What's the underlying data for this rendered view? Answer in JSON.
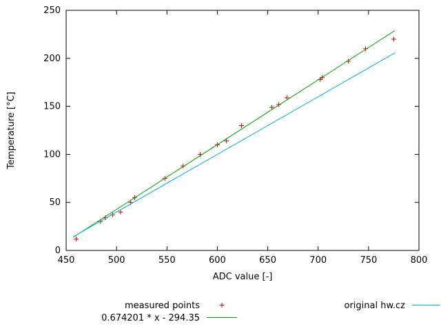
{
  "chart_data": {
    "type": "scatter",
    "title": "",
    "xlabel": "ADC value [-]",
    "ylabel": "Temperature [°C]",
    "xlim": [
      450,
      800
    ],
    "ylim": [
      0,
      250
    ],
    "xticks": [
      450,
      500,
      550,
      600,
      650,
      700,
      750,
      800
    ],
    "yticks": [
      0,
      50,
      100,
      150,
      200,
      250
    ],
    "grid": false,
    "legend_position": "below",
    "background": "#ffffff",
    "axis_color": "#000000",
    "series": [
      {
        "name": "measured points",
        "kind": "points",
        "marker": "plus",
        "color": "#cc0000",
        "points": [
          [
            460,
            12
          ],
          [
            484,
            30
          ],
          [
            489,
            34
          ],
          [
            496,
            37
          ],
          [
            504,
            40
          ],
          [
            514,
            50
          ],
          [
            518,
            55
          ],
          [
            548,
            75
          ],
          [
            566,
            88
          ],
          [
            583,
            100
          ],
          [
            600,
            110
          ],
          [
            609,
            114
          ],
          [
            624,
            130
          ],
          [
            654,
            149
          ],
          [
            661,
            152
          ],
          [
            669,
            159
          ],
          [
            702,
            178
          ],
          [
            704,
            180
          ],
          [
            730,
            197
          ],
          [
            747,
            210
          ],
          [
            775,
            220
          ]
        ]
      },
      {
        "name": "0.674201 * x - 294.35",
        "kind": "line",
        "color": "#00a000",
        "slope": 0.674201,
        "intercept": -294.35,
        "x_start": 457,
        "x_end": 776
      },
      {
        "name": "original hw.cz",
        "kind": "line",
        "color": "#00b4d8",
        "slope": 0.6,
        "intercept": -260,
        "x_start": 457,
        "x_end": 776
      }
    ]
  }
}
